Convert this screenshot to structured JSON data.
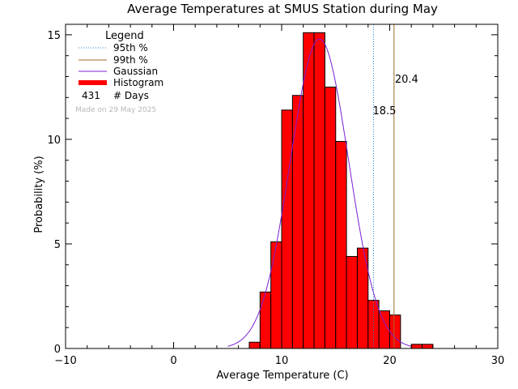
{
  "chart_data": {
    "type": "bar",
    "title": "Average Temperatures at SMUS Station during May",
    "xlabel": "Average Temperature (C)",
    "ylabel": "Probability   (%)",
    "xlim": [
      -10,
      30
    ],
    "ylim": [
      0,
      15.5
    ],
    "x_ticks": [
      -10,
      0,
      10,
      20,
      30
    ],
    "y_ticks": [
      0,
      5,
      10,
      15
    ],
    "bin_width": 1,
    "bins": [
      {
        "x0": 7,
        "value": 0.3
      },
      {
        "x0": 8,
        "value": 2.7
      },
      {
        "x0": 9,
        "value": 5.1
      },
      {
        "x0": 10,
        "value": 11.4
      },
      {
        "x0": 11,
        "value": 12.1
      },
      {
        "x0": 12,
        "value": 15.1
      },
      {
        "x0": 13,
        "value": 15.1
      },
      {
        "x0": 14,
        "value": 12.5
      },
      {
        "x0": 15,
        "value": 9.9
      },
      {
        "x0": 16,
        "value": 4.4
      },
      {
        "x0": 17,
        "value": 4.8
      },
      {
        "x0": 18,
        "value": 2.3
      },
      {
        "x0": 19,
        "value": 1.8
      },
      {
        "x0": 20,
        "value": 1.6
      },
      {
        "x0": 22,
        "value": 0.2
      },
      {
        "x0": 23,
        "value": 0.2
      }
    ],
    "gaussian": {
      "mean": 13.5,
      "sigma": 2.7,
      "peak": 14.8,
      "range": [
        5,
        22
      ]
    },
    "p95": {
      "value": 18.5,
      "label": "18.5",
      "label_y": 11.4,
      "color": "#1a7fd6"
    },
    "p99": {
      "value": 20.4,
      "label": "20.4",
      "label_y": 12.9,
      "color": "#a0692a"
    },
    "colors": {
      "histogram": "#ff0000",
      "gaussian": "#7a1fd6"
    },
    "legend": {
      "title": "Legend",
      "items": [
        {
          "label": "95th %",
          "style": "dotted",
          "color": "#1a7fd6"
        },
        {
          "label": "99th %",
          "style": "line",
          "color": "#a0692a"
        },
        {
          "label": "Gaussian",
          "style": "line",
          "color": "#7a1fd6"
        },
        {
          "label": "Histogram",
          "style": "thick",
          "color": "#ff0000"
        }
      ],
      "days_count": "431",
      "days_label": "# Days",
      "made_on": "Made on 29 May 2025"
    }
  }
}
